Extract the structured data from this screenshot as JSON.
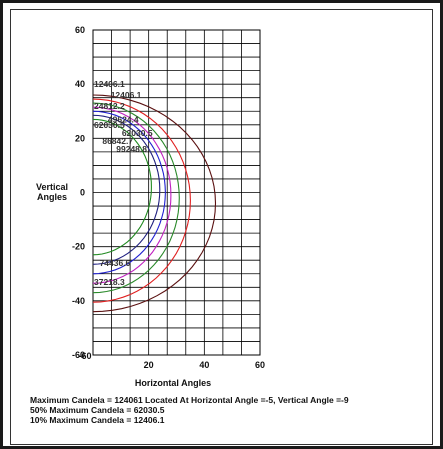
{
  "chart_data": {
    "type": "line",
    "title": "",
    "xlabel": "Horizontal Angles",
    "ylabel": "Vertical Angles",
    "xlim": [
      -60,
      60
    ],
    "ylim": [
      -60,
      60
    ],
    "x_ticks": [
      -60,
      20,
      40,
      60
    ],
    "y_ticks": [
      60,
      40,
      20,
      0,
      -20,
      -40,
      -60
    ],
    "grid": true,
    "contours": [
      {
        "label": "12406.1",
        "color": "#5a1010",
        "extent": 44
      },
      {
        "label": "24812.2",
        "color": "#e02020",
        "extent": 35
      },
      {
        "label": "37218.3",
        "color": "#2a8a2a",
        "extent": 31
      },
      {
        "label": "49624.4",
        "color": "#c020c0",
        "extent": 28
      },
      {
        "label": "62030.5",
        "color": "#2020d0",
        "extent": 26
      },
      {
        "label": "86842.7",
        "color": "#202080",
        "extent": 24
      },
      {
        "label": "99248.8",
        "color": "#208a20",
        "extent": 21
      }
    ],
    "annotations": [
      {
        "text": "12406.1",
        "x": 0,
        "y": 40
      },
      {
        "text": "12406.1",
        "x": 6,
        "y": 36
      },
      {
        "text": "24812.2",
        "x": 0,
        "y": 32
      },
      {
        "text": "49624.4",
        "x": 5,
        "y": 27
      },
      {
        "text": "62030.5",
        "x": 0,
        "y": 25
      },
      {
        "text": "62030.5",
        "x": 10,
        "y": 22
      },
      {
        "text": "86842.7",
        "x": 3,
        "y": 19
      },
      {
        "text": "99248.8",
        "x": 8,
        "y": 16
      },
      {
        "text": "74436.6",
        "x": 2,
        "y": -26
      },
      {
        "text": "37218.3",
        "x": 0,
        "y": -33
      }
    ]
  },
  "footer": {
    "line1": "Maximum Candela = 124061   Located At Horizontal Angle =-5, Vertical Angle =-9",
    "line2": "50% Maximum Candela = 62030.5",
    "line3": "10% Maximum Candela = 12406.1"
  }
}
